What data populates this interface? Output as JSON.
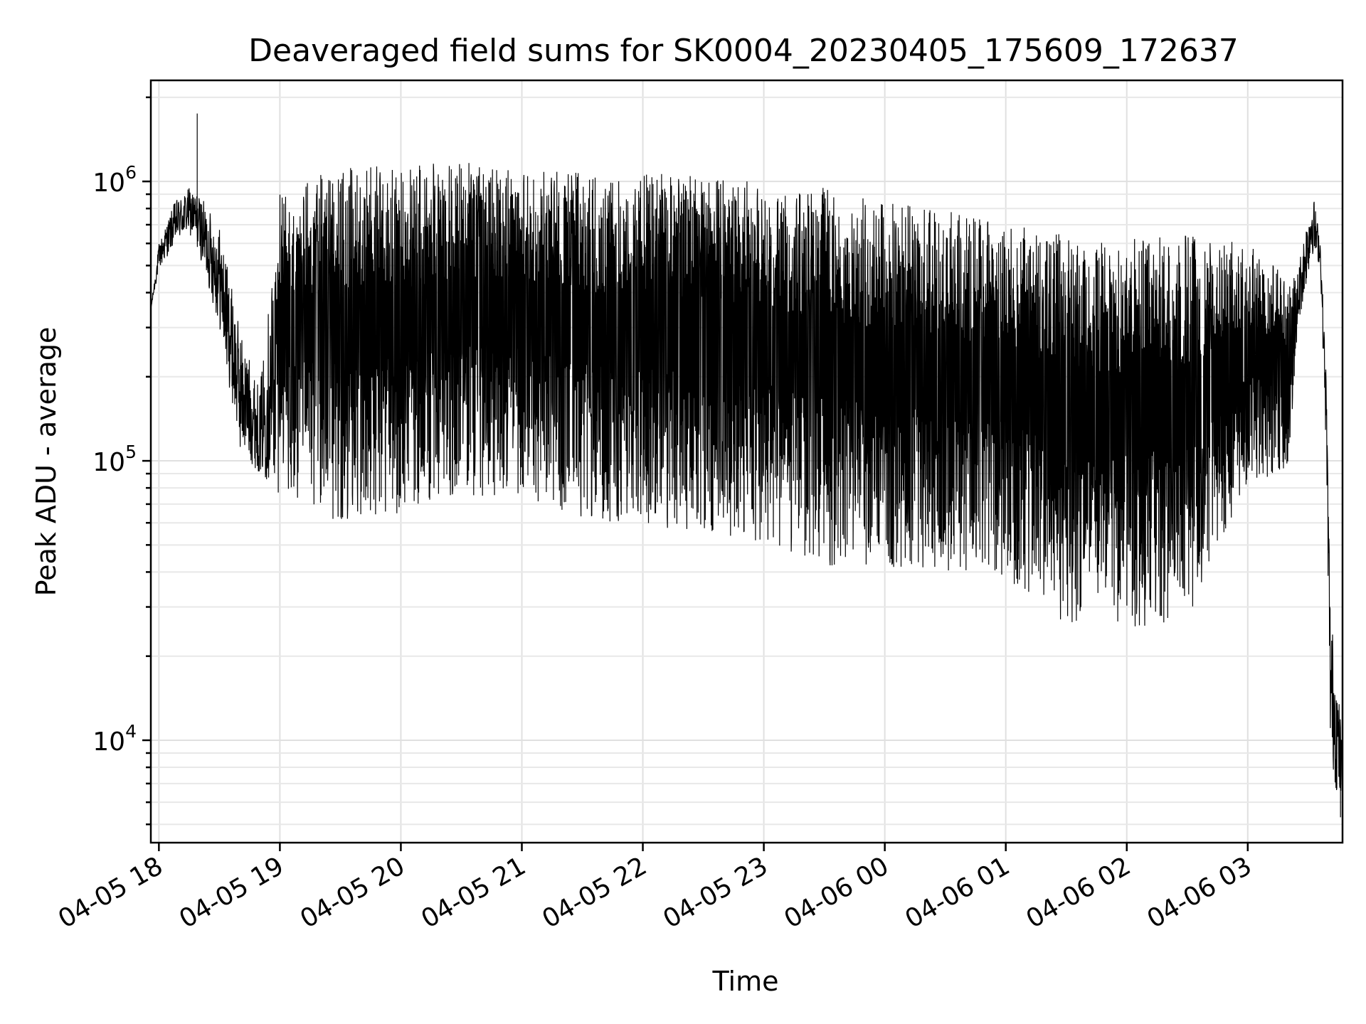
{
  "chart_data": {
    "type": "line",
    "title": "Deaveraged field sums for SK0004_20230405_175609_172637",
    "xlabel": "Time",
    "ylabel": "Peak ADU - average",
    "yscale": "log",
    "ylim": [
      4300,
      2300000
    ],
    "xlim": [
      "2023-04-05 17:56",
      "2023-04-06 03:47"
    ],
    "grid": true,
    "x_ticks": [
      {
        "value": "2023-04-05 18:00",
        "label": "04-05 18"
      },
      {
        "value": "2023-04-05 19:00",
        "label": "04-05 19"
      },
      {
        "value": "2023-04-05 20:00",
        "label": "04-05 20"
      },
      {
        "value": "2023-04-05 21:00",
        "label": "04-05 21"
      },
      {
        "value": "2023-04-05 22:00",
        "label": "04-05 22"
      },
      {
        "value": "2023-04-05 23:00",
        "label": "04-05 23"
      },
      {
        "value": "2023-04-06 00:00",
        "label": "04-06 00"
      },
      {
        "value": "2023-04-06 01:00",
        "label": "04-06 01"
      },
      {
        "value": "2023-04-06 02:00",
        "label": "04-06 02"
      },
      {
        "value": "2023-04-06 03:00",
        "label": "04-06 03"
      }
    ],
    "y_ticks": [
      {
        "value": 10000,
        "base": "10",
        "exp": "4"
      },
      {
        "value": 100000,
        "base": "10",
        "exp": "5"
      },
      {
        "value": 1000000,
        "base": "10",
        "exp": "6"
      }
    ],
    "series_color": "#000000",
    "envelope": [
      {
        "t": "2023-04-05 17:56",
        "upper": 350000,
        "lower": 350000,
        "mode": "smooth"
      },
      {
        "t": "2023-04-05 18:00",
        "upper": 600000,
        "lower": 480000,
        "mode": "smooth"
      },
      {
        "t": "2023-04-05 18:08",
        "upper": 850000,
        "lower": 600000,
        "mode": "smooth"
      },
      {
        "t": "2023-04-05 18:15",
        "upper": 950000,
        "lower": 650000,
        "mode": "smooth"
      },
      {
        "t": "2023-04-05 18:20",
        "upper": 900000,
        "lower": 550000,
        "mode": "smooth"
      },
      {
        "t": "2023-04-05 18:30",
        "upper": 700000,
        "lower": 300000,
        "mode": "smooth"
      },
      {
        "t": "2023-04-05 18:40",
        "upper": 300000,
        "lower": 110000,
        "mode": "smooth"
      },
      {
        "t": "2023-04-05 18:50",
        "upper": 180000,
        "lower": 90000,
        "mode": "smooth"
      },
      {
        "t": "2023-04-05 19:00",
        "upper": 900000,
        "lower": 75000,
        "mode": "spiky"
      },
      {
        "t": "2023-04-05 19:30",
        "upper": 1150000,
        "lower": 60000,
        "mode": "spiky"
      },
      {
        "t": "2023-04-05 20:00",
        "upper": 1120000,
        "lower": 65000,
        "mode": "spiky"
      },
      {
        "t": "2023-04-05 20:30",
        "upper": 1200000,
        "lower": 75000,
        "mode": "spiky"
      },
      {
        "t": "2023-04-05 21:00",
        "upper": 1120000,
        "lower": 75000,
        "mode": "spiky"
      },
      {
        "t": "2023-04-05 21:30",
        "upper": 1080000,
        "lower": 62000,
        "mode": "spiky"
      },
      {
        "t": "2023-04-05 22:00",
        "upper": 1080000,
        "lower": 58000,
        "mode": "spiky"
      },
      {
        "t": "2023-04-05 22:30",
        "upper": 1050000,
        "lower": 55000,
        "mode": "spiky"
      },
      {
        "t": "2023-04-05 23:00",
        "upper": 1000000,
        "lower": 50000,
        "mode": "spiky"
      },
      {
        "t": "2023-04-05 23:30",
        "upper": 950000,
        "lower": 42000,
        "mode": "spiky"
      },
      {
        "t": "2023-04-06 00:00",
        "upper": 850000,
        "lower": 42000,
        "mode": "spiky"
      },
      {
        "t": "2023-04-06 00:30",
        "upper": 800000,
        "lower": 40000,
        "mode": "spiky"
      },
      {
        "t": "2023-04-06 01:00",
        "upper": 700000,
        "lower": 38000,
        "mode": "spiky"
      },
      {
        "t": "2023-04-06 01:30",
        "upper": 650000,
        "lower": 26000,
        "mode": "spiky"
      },
      {
        "t": "2023-04-06 02:00",
        "upper": 620000,
        "lower": 25000,
        "mode": "spiky"
      },
      {
        "t": "2023-04-06 02:30",
        "upper": 640000,
        "lower": 27000,
        "mode": "spiky"
      },
      {
        "t": "2023-04-06 03:00",
        "upper": 600000,
        "lower": 85000,
        "mode": "spiky"
      },
      {
        "t": "2023-04-06 03:20",
        "upper": 450000,
        "lower": 90000,
        "mode": "spiky"
      },
      {
        "t": "2023-04-06 03:25",
        "upper": 500000,
        "lower": 300000,
        "mode": "smooth"
      },
      {
        "t": "2023-04-06 03:32",
        "upper": 950000,
        "lower": 550000,
        "mode": "smooth"
      },
      {
        "t": "2023-04-06 03:36",
        "upper": 620000,
        "lower": 500000,
        "mode": "smooth"
      },
      {
        "t": "2023-04-06 03:39",
        "upper": 200000,
        "lower": 100000,
        "mode": "smooth"
      },
      {
        "t": "2023-04-06 03:41",
        "upper": 30000,
        "lower": 9000,
        "mode": "smooth"
      },
      {
        "t": "2023-04-06 03:44",
        "upper": 18000,
        "lower": 6500,
        "mode": "smooth"
      },
      {
        "t": "2023-04-06 03:47",
        "upper": 10000,
        "lower": 5500,
        "mode": "smooth"
      }
    ],
    "annotated_points": [
      {
        "t": "2023-04-05 18:19",
        "value": 1750000
      },
      {
        "t": "2023-04-06 03:46",
        "value": 5300
      }
    ]
  }
}
